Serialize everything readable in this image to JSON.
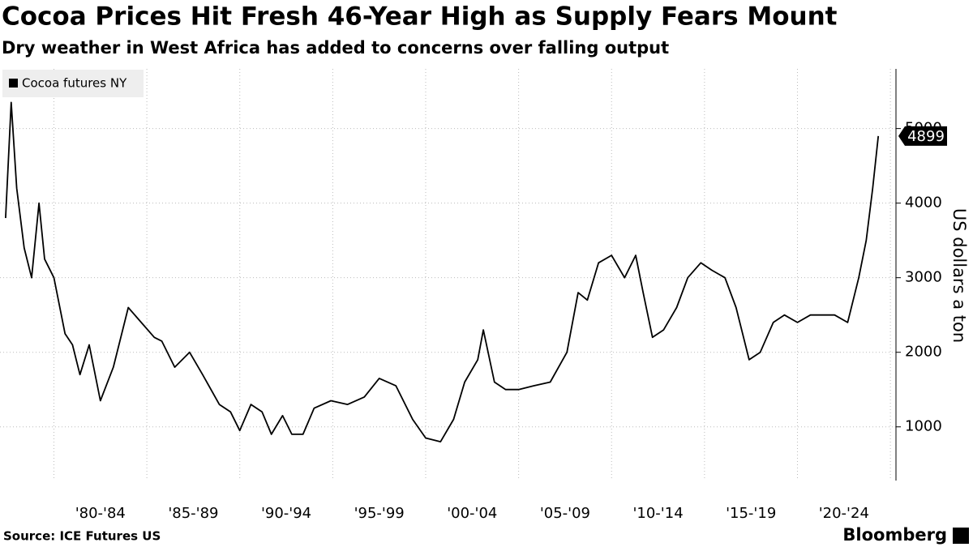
{
  "chart_data": {
    "type": "line",
    "title": "Cocoa Prices Hit Fresh 46-Year High as Supply Fears Mount",
    "subtitle": "Dry weather in West Africa has added to concerns over falling output",
    "ylabel": "US dollars a ton",
    "source": "Source: ICE Futures US",
    "logo_text": "Bloomberg",
    "legend": "top-left",
    "grid": true,
    "xlim": [
      1977.1,
      2025.3
    ],
    "xticks": [
      {
        "value": 1980,
        "label": "'80-'84"
      },
      {
        "value": 1985,
        "label": "'85-'89"
      },
      {
        "value": 1990,
        "label": "'90-'94"
      },
      {
        "value": 1995,
        "label": "'95-'99"
      },
      {
        "value": 2000,
        "label": "'00-'04"
      },
      {
        "value": 2005,
        "label": "'05-'09"
      },
      {
        "value": 2010,
        "label": "'10-'14"
      },
      {
        "value": 2015,
        "label": "'15-'19"
      },
      {
        "value": 2020,
        "label": "'20-'24"
      }
    ],
    "ylim": [
      280,
      5800
    ],
    "yticks": [
      1000,
      2000,
      3000,
      4000,
      5000
    ],
    "x": [
      1977.4,
      1977.7,
      1978.0,
      1978.4,
      1978.8,
      1979.2,
      1979.5,
      1980.0,
      1980.6,
      1981.0,
      1981.4,
      1981.9,
      1982.5,
      1983.2,
      1984.0,
      1984.7,
      1985.4,
      1985.8,
      1986.5,
      1987.3,
      1988.0,
      1988.9,
      1989.5,
      1990.0,
      1990.6,
      1991.2,
      1991.7,
      1992.3,
      1992.8,
      1993.4,
      1994.0,
      1994.9,
      1995.8,
      1996.7,
      1997.5,
      1998.4,
      1999.3,
      2000.0,
      2000.8,
      2001.5,
      2002.1,
      2002.8,
      2003.1,
      2003.7,
      2004.3,
      2005.0,
      2005.8,
      2006.7,
      2007.6,
      2008.2,
      2008.7,
      2009.3,
      2010.0,
      2010.7,
      2011.3,
      2011.7,
      2012.2,
      2012.8,
      2013.5,
      2014.1,
      2014.8,
      2015.4,
      2016.1,
      2016.7,
      2017.4,
      2018.0,
      2018.7,
      2019.3,
      2020.0,
      2020.7,
      2021.4,
      2022.0,
      2022.7,
      2023.3,
      2023.7,
      2024.05,
      2024.35
    ],
    "series": [
      {
        "name": "Cocoa futures NY",
        "color": "#000000",
        "values": [
          3800,
          5350,
          4200,
          3400,
          3000,
          4000,
          3250,
          3000,
          2250,
          2100,
          1700,
          2100,
          1350,
          1800,
          2600,
          2400,
          2200,
          2150,
          1800,
          2000,
          1700,
          1300,
          1200,
          950,
          1300,
          1200,
          900,
          1150,
          900,
          900,
          1250,
          1350,
          1300,
          1400,
          1650,
          1550,
          1100,
          850,
          800,
          1100,
          1600,
          1900,
          2300,
          1600,
          1500,
          1500,
          1550,
          1600,
          2000,
          2800,
          2700,
          3200,
          3300,
          3000,
          3300,
          2800,
          2200,
          2300,
          2600,
          3000,
          3200,
          3100,
          3000,
          2600,
          1900,
          2000,
          2400,
          2500,
          2400,
          2500,
          2500,
          2500,
          2400,
          3000,
          3500,
          4200,
          4899
        ]
      }
    ]
  }
}
